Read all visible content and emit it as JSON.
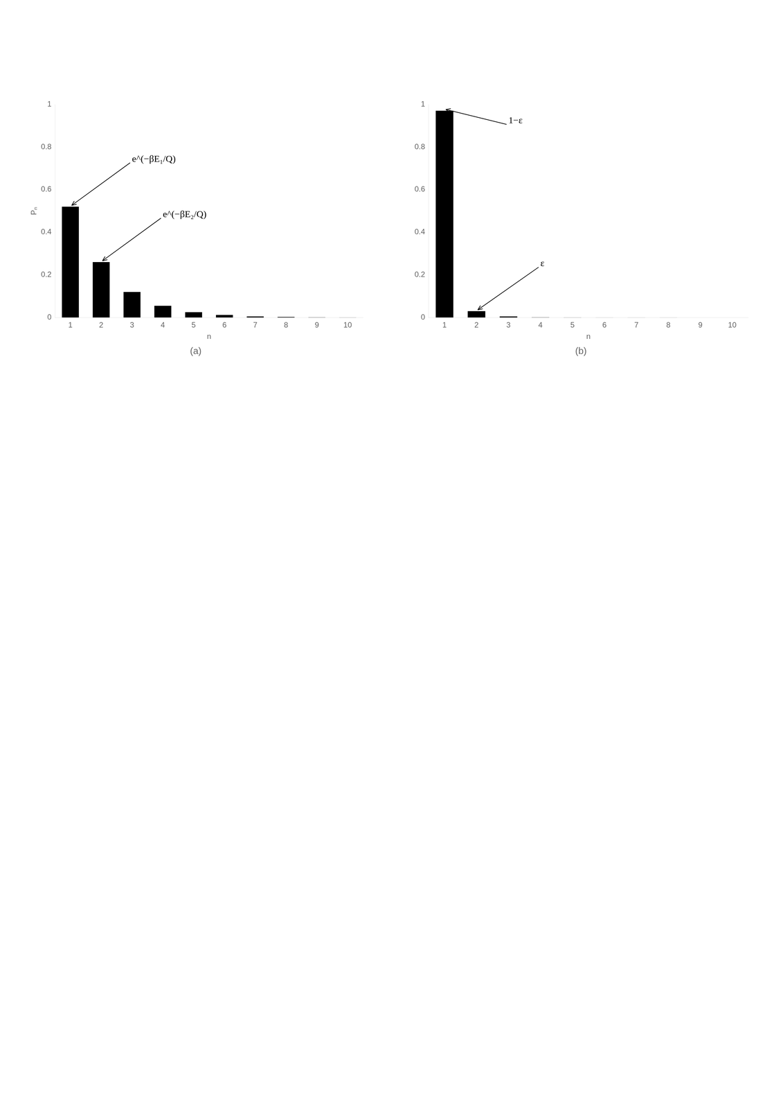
{
  "chart_data": [
    {
      "type": "bar",
      "title": "(a)",
      "x_label": "n",
      "y_label": "Pₙ",
      "categories": [
        "1",
        "2",
        "3",
        "4",
        "5",
        "6",
        "7",
        "8",
        "9",
        "10"
      ],
      "values": [
        0.52,
        0.26,
        0.12,
        0.055,
        0.025,
        0.012,
        0.005,
        0.003,
        0.001,
        0.0005
      ],
      "color": "#000000",
      "ylim": [
        0,
        1
      ],
      "yticks": [
        0,
        0.2,
        0.4,
        0.6,
        0.8,
        1
      ],
      "grid": false,
      "annotations": [
        {
          "text": "e^(−βE₁/Q)",
          "target": "1"
        },
        {
          "text": "e^(−βE₂/Q)",
          "target": "2"
        }
      ]
    },
    {
      "type": "bar",
      "title": "(b)",
      "x_label": "n",
      "categories": [
        "1",
        "2",
        "3",
        "4",
        "5",
        "6",
        "7",
        "8",
        "9",
        "10"
      ],
      "values": [
        0.97,
        0.03,
        0.005,
        0.001,
        0.0005,
        0.0002,
        0.0001,
        5e-05,
        2e-05,
        1e-05
      ],
      "color": "#000000",
      "ylim": [
        0,
        1
      ],
      "yticks": [
        0,
        0.2,
        0.4,
        0.6,
        0.8,
        1
      ],
      "grid": false,
      "annotations": [
        {
          "text": "1−ε",
          "target": "1"
        },
        {
          "text": "ε",
          "target": "2"
        }
      ]
    }
  ]
}
